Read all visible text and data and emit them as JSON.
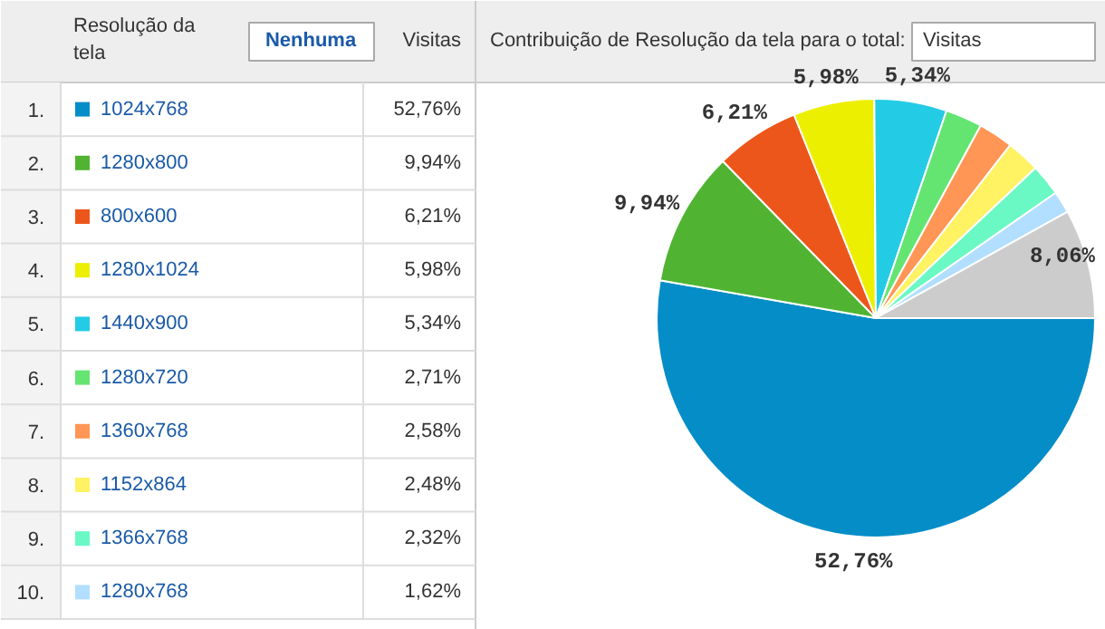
{
  "chart_data": {
    "type": "pie",
    "title": "Contribuição de Resolução da tela para o total:",
    "categories": [
      "1024x768",
      "1280x800",
      "800x600",
      "1280x1024",
      "1440x900",
      "1280x720",
      "1360x768",
      "1152x864",
      "1366x768",
      "1280x768",
      null
    ],
    "values": [
      52.76,
      9.94,
      6.21,
      5.98,
      5.34,
      2.71,
      2.58,
      2.48,
      2.32,
      1.62,
      8.06
    ],
    "colors": [
      "#058dc7",
      "#50b432",
      "#ed561b",
      "#edef00",
      "#24cbe5",
      "#64e572",
      "#ff9655",
      "#fff263",
      "#6af9c4",
      "#b2deff",
      "#cccccc"
    ],
    "value_labels": [
      "52,76%",
      "9,94%",
      "6,21%",
      "5,98%",
      "5,34%",
      "2,71%",
      "2,58%",
      "2,48%",
      "2,32%",
      "1,62%",
      "8,06%"
    ],
    "legend": "left",
    "annotations": [
      "Resolução da\ntela",
      "Nenhuma",
      "Visitas",
      "Visitas",
      "1.",
      "2.",
      "3.",
      "4.",
      "5.",
      "6.",
      "7.",
      "8.",
      "9.",
      "10."
    ]
  }
}
